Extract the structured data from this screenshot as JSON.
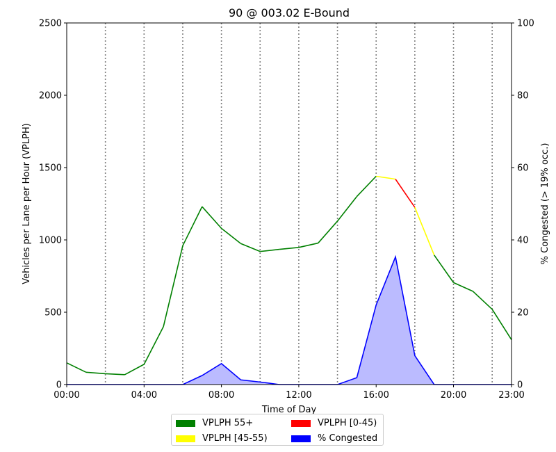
{
  "chart_data": {
    "type": "line",
    "title": "90 @ 003.02 E-Bound",
    "xlabel": "Time of Day",
    "ylabel": "Vehicles per Lane per Hour (VPLPH)",
    "y2label": "% Congested (> 19% occ.)",
    "x": [
      0,
      1,
      2,
      3,
      4,
      5,
      6,
      7,
      8,
      9,
      10,
      11,
      12,
      13,
      14,
      15,
      16,
      17,
      18,
      19,
      20,
      21,
      22,
      23
    ],
    "xlim": [
      0,
      23
    ],
    "ylim": [
      0,
      2500
    ],
    "y2lim": [
      0,
      100
    ],
    "xticks": [
      0,
      4,
      8,
      12,
      16,
      20,
      23
    ],
    "xtick_labels": [
      "00:00",
      "04:00",
      "08:00",
      "12:00",
      "16:00",
      "20:00",
      "23:00"
    ],
    "yticks": [
      0,
      500,
      1000,
      1500,
      2000,
      2500
    ],
    "y2ticks": [
      0,
      20,
      40,
      60,
      80,
      100
    ],
    "vlines": [
      2,
      4,
      6,
      8,
      10,
      12,
      14,
      16,
      18,
      20,
      22
    ],
    "series": [
      {
        "name": "VPLPH 55+",
        "axis": "left",
        "values": [
          150,
          85,
          75,
          68,
          140,
          400,
          960,
          1230,
          1080,
          975,
          920,
          935,
          948,
          978,
          1130,
          1300,
          1440,
          1420,
          1225,
          895,
          705,
          645,
          520,
          310
        ],
        "speed_class": [
          "green",
          "green",
          "green",
          "green",
          "green",
          "green",
          "green",
          "green",
          "green",
          "green",
          "green",
          "green",
          "green",
          "green",
          "green",
          "green",
          "yellow",
          "red",
          "yellow",
          "green",
          "green",
          "green",
          "green",
          "green"
        ]
      },
      {
        "name": "% Congested",
        "axis": "right",
        "values": [
          0,
          0,
          0,
          0,
          0,
          0,
          0,
          2.5,
          5.8,
          1.3,
          0.7,
          0,
          0,
          0,
          0,
          1.9,
          22,
          35.3,
          8,
          0,
          0,
          0,
          0,
          0
        ],
        "fill": true
      }
    ],
    "legend": {
      "placement": "bottom-center",
      "items": [
        {
          "label": "VPLPH 55+",
          "color": "#008000"
        },
        {
          "label": "VPLPH [0-45)",
          "color": "#ff0000"
        },
        {
          "label": "VPLPH [45-55)",
          "color": "#ffff00"
        },
        {
          "label": "% Congested",
          "color": "#0000ff"
        }
      ]
    },
    "colors": {
      "green": "#008000",
      "yellow": "#ffff00",
      "red": "#ff0000",
      "congested_line": "#0000ff",
      "congested_fill": "#bbbbff",
      "vline": "#808080"
    },
    "grid": false
  }
}
